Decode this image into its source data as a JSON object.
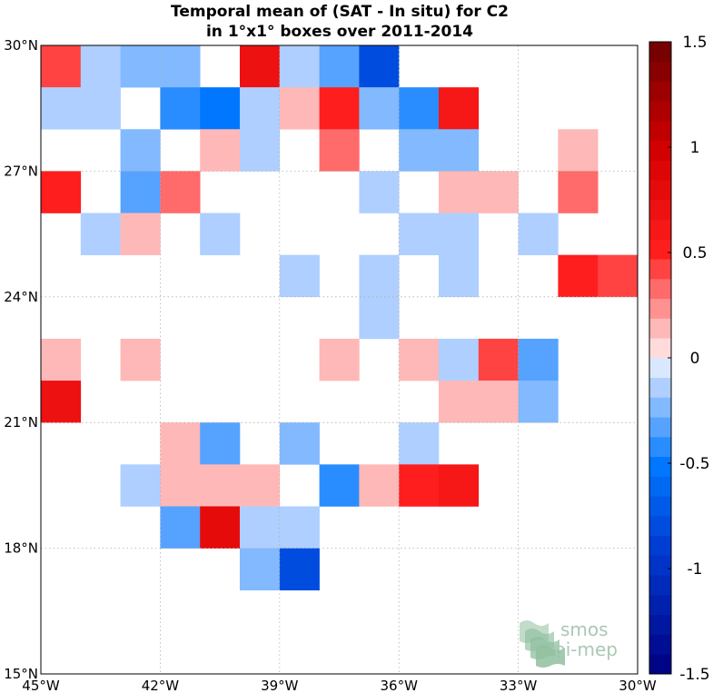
{
  "chart_data": {
    "type": "heatmap",
    "title": [
      "Temporal mean of (SAT - In situ) for C2",
      "in 1°x1° boxes over 2011-2014"
    ],
    "xlabel": "",
    "ylabel": "",
    "xlim": [
      -45,
      -30
    ],
    "ylim": [
      15,
      30
    ],
    "cell_size_deg": 1,
    "x_ticks": [
      {
        "value": -45,
        "label": "45°W"
      },
      {
        "value": -42,
        "label": "42°W"
      },
      {
        "value": -39,
        "label": "39°W"
      },
      {
        "value": -36,
        "label": "36°W"
      },
      {
        "value": -33,
        "label": "33°W"
      },
      {
        "value": -30,
        "label": "30°W"
      }
    ],
    "y_ticks": [
      {
        "value": 15,
        "label": "15°N"
      },
      {
        "value": 18,
        "label": "18°N"
      },
      {
        "value": 21,
        "label": "21°N"
      },
      {
        "value": 24,
        "label": "24°N"
      },
      {
        "value": 27,
        "label": "27°N"
      },
      {
        "value": 30,
        "label": "30°N"
      }
    ],
    "grid": true,
    "colorbar": {
      "position": "right",
      "range": [
        -1.5,
        1.5
      ],
      "levels": 32,
      "ticks": [
        {
          "value": 1.5,
          "label": "1.5"
        },
        {
          "value": 1,
          "label": "1"
        },
        {
          "value": 0.5,
          "label": "0.5"
        },
        {
          "value": 0,
          "label": "0"
        },
        {
          "value": -0.5,
          "label": "-0.5"
        },
        {
          "value": -1,
          "label": "-1"
        },
        {
          "value": -1.5,
          "label": "-1.5"
        }
      ]
    },
    "cells": [
      {
        "lon": -45,
        "lat": 29,
        "value": 0.45
      },
      {
        "lon": -44,
        "lat": 29,
        "value": -0.15
      },
      {
        "lon": -43,
        "lat": 29,
        "value": -0.25
      },
      {
        "lon": -42,
        "lat": 29,
        "value": -0.2
      },
      {
        "lon": -40,
        "lat": 29,
        "value": 0.7
      },
      {
        "lon": -39,
        "lat": 29,
        "value": -0.15
      },
      {
        "lon": -38,
        "lat": 29,
        "value": -0.3
      },
      {
        "lon": -37,
        "lat": 29,
        "value": -0.8
      },
      {
        "lon": -45,
        "lat": 28,
        "value": -0.15
      },
      {
        "lon": -44,
        "lat": 28,
        "value": -0.15
      },
      {
        "lon": -42,
        "lat": 28,
        "value": -0.45
      },
      {
        "lon": -41,
        "lat": 28,
        "value": -0.55
      },
      {
        "lon": -40,
        "lat": 28,
        "value": -0.15
      },
      {
        "lon": -39,
        "lat": 28,
        "value": 0.15
      },
      {
        "lon": -38,
        "lat": 28,
        "value": 0.5
      },
      {
        "lon": -37,
        "lat": 28,
        "value": -0.25
      },
      {
        "lon": -36,
        "lat": 28,
        "value": -0.45
      },
      {
        "lon": -35,
        "lat": 28,
        "value": 0.6
      },
      {
        "lon": -43,
        "lat": 27,
        "value": -0.25
      },
      {
        "lon": -41,
        "lat": 27,
        "value": 0.15
      },
      {
        "lon": -40,
        "lat": 27,
        "value": -0.15
      },
      {
        "lon": -38,
        "lat": 27,
        "value": 0.3
      },
      {
        "lon": -36,
        "lat": 27,
        "value": -0.2
      },
      {
        "lon": -35,
        "lat": 27,
        "value": -0.2
      },
      {
        "lon": -32,
        "lat": 27,
        "value": 0.15
      },
      {
        "lon": -45,
        "lat": 26,
        "value": 0.5
      },
      {
        "lon": -43,
        "lat": 26,
        "value": -0.3
      },
      {
        "lon": -42,
        "lat": 26,
        "value": 0.3
      },
      {
        "lon": -37,
        "lat": 26,
        "value": -0.12
      },
      {
        "lon": -35,
        "lat": 26,
        "value": 0.15
      },
      {
        "lon": -34,
        "lat": 26,
        "value": 0.15
      },
      {
        "lon": -32,
        "lat": 26,
        "value": 0.3
      },
      {
        "lon": -44,
        "lat": 25,
        "value": -0.15
      },
      {
        "lon": -43,
        "lat": 25,
        "value": 0.15
      },
      {
        "lon": -41,
        "lat": 25,
        "value": -0.15
      },
      {
        "lon": -36,
        "lat": 25,
        "value": -0.12
      },
      {
        "lon": -35,
        "lat": 25,
        "value": -0.12
      },
      {
        "lon": -33,
        "lat": 25,
        "value": -0.12
      },
      {
        "lon": -39,
        "lat": 24,
        "value": -0.12
      },
      {
        "lon": -37,
        "lat": 24,
        "value": -0.12
      },
      {
        "lon": -35,
        "lat": 24,
        "value": -0.12
      },
      {
        "lon": -32,
        "lat": 24,
        "value": 0.5
      },
      {
        "lon": -31,
        "lat": 24,
        "value": 0.4
      },
      {
        "lon": -37,
        "lat": 23,
        "value": -0.12
      },
      {
        "lon": -45,
        "lat": 22,
        "value": 0.15
      },
      {
        "lon": -43,
        "lat": 22,
        "value": 0.15
      },
      {
        "lon": -38,
        "lat": 22,
        "value": 0.15
      },
      {
        "lon": -36,
        "lat": 22,
        "value": 0.15
      },
      {
        "lon": -35,
        "lat": 22,
        "value": -0.12
      },
      {
        "lon": -34,
        "lat": 22,
        "value": 0.4
      },
      {
        "lon": -33,
        "lat": 22,
        "value": -0.3
      },
      {
        "lon": -45,
        "lat": 21,
        "value": 0.7
      },
      {
        "lon": -35,
        "lat": 21,
        "value": 0.15
      },
      {
        "lon": -34,
        "lat": 21,
        "value": 0.15
      },
      {
        "lon": -33,
        "lat": 21,
        "value": -0.2
      },
      {
        "lon": -42,
        "lat": 20,
        "value": 0.15
      },
      {
        "lon": -41,
        "lat": 20,
        "value": -0.35
      },
      {
        "lon": -39,
        "lat": 20,
        "value": -0.25
      },
      {
        "lon": -36,
        "lat": 20,
        "value": -0.12
      },
      {
        "lon": -43,
        "lat": 19,
        "value": -0.12
      },
      {
        "lon": -42,
        "lat": 19,
        "value": 0.15
      },
      {
        "lon": -41,
        "lat": 19,
        "value": 0.15
      },
      {
        "lon": -40,
        "lat": 19,
        "value": 0.15
      },
      {
        "lon": -38,
        "lat": 19,
        "value": -0.4
      },
      {
        "lon": -37,
        "lat": 19,
        "value": 0.15
      },
      {
        "lon": -36,
        "lat": 19,
        "value": 0.5
      },
      {
        "lon": -35,
        "lat": 19,
        "value": 0.6
      },
      {
        "lon": -42,
        "lat": 18,
        "value": -0.35
      },
      {
        "lon": -41,
        "lat": 18,
        "value": 0.75
      },
      {
        "lon": -40,
        "lat": 18,
        "value": -0.15
      },
      {
        "lon": -39,
        "lat": 18,
        "value": -0.15
      },
      {
        "lon": -40,
        "lat": 17,
        "value": -0.2
      },
      {
        "lon": -39,
        "lat": 17,
        "value": -0.8
      }
    ]
  },
  "logo": {
    "text_line1": "smos",
    "text_line2": "pi-mep",
    "color_text": "#a9c9b4",
    "color_mark": "#8fbf9f"
  }
}
